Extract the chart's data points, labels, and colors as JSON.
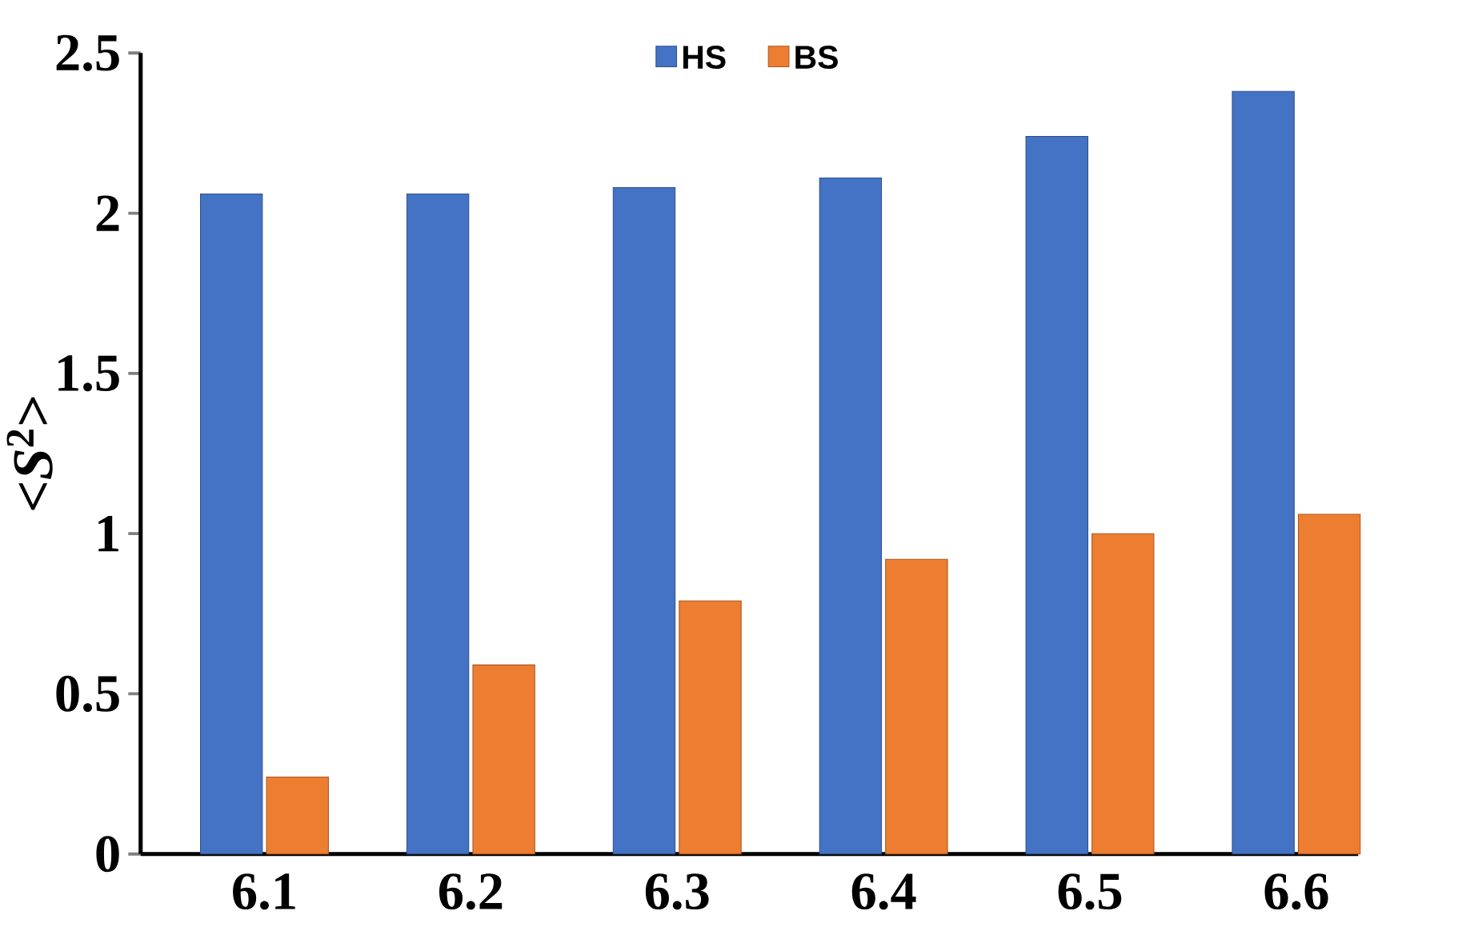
{
  "chart_data": {
    "type": "bar",
    "ylabel": "<*S*$^{2}$>",
    "categories": [
      "6.1",
      "6.2",
      "6.3",
      "6.4",
      "6.5",
      "6.6"
    ],
    "series": [
      {
        "name": "HS",
        "color": "#4472c4",
        "values": [
          2.06,
          2.06,
          2.08,
          2.11,
          2.24,
          2.38
        ]
      },
      {
        "name": "BS",
        "color": "#ed7d31",
        "values": [
          0.24,
          0.59,
          0.79,
          0.92,
          1.0,
          1.06
        ]
      }
    ],
    "ylim": [
      0,
      2.5
    ],
    "yticks": [
      0,
      0.5,
      1,
      1.5,
      2,
      2.5
    ],
    "grid": false,
    "legend": "top"
  }
}
